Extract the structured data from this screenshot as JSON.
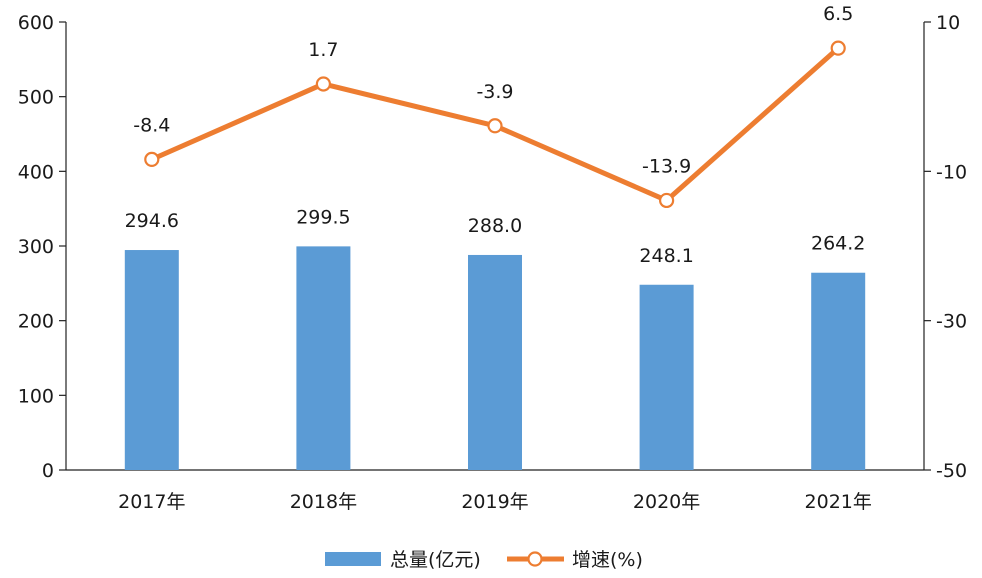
{
  "chart_data": {
    "type": "bar",
    "categories": [
      "2017年",
      "2018年",
      "2019年",
      "2020年",
      "2021年"
    ],
    "series": [
      {
        "name": "总量(亿元)",
        "type": "bar",
        "axis": "left",
        "color": "#5B9BD5",
        "values": [
          294.6,
          299.5,
          288.0,
          248.1,
          264.2
        ],
        "labels": [
          "294.6",
          "299.5",
          "288.0",
          "248.1",
          "264.2"
        ]
      },
      {
        "name": "增速(%)",
        "type": "line",
        "axis": "right",
        "color": "#ED7D31",
        "values": [
          -8.4,
          1.7,
          -3.9,
          -13.9,
          6.5
        ],
        "labels": [
          "-8.4",
          "1.7",
          "-3.9",
          "-13.9",
          "6.5"
        ]
      }
    ],
    "y_left": {
      "min": 0,
      "max": 600,
      "ticks": [
        "0",
        "100",
        "200",
        "300",
        "400",
        "500",
        "600"
      ]
    },
    "y_right": {
      "min": -50,
      "max": 10,
      "ticks": [
        "-50",
        "-30",
        "-10",
        "10"
      ]
    },
    "grid": false,
    "legend_position": "bottom-center"
  }
}
